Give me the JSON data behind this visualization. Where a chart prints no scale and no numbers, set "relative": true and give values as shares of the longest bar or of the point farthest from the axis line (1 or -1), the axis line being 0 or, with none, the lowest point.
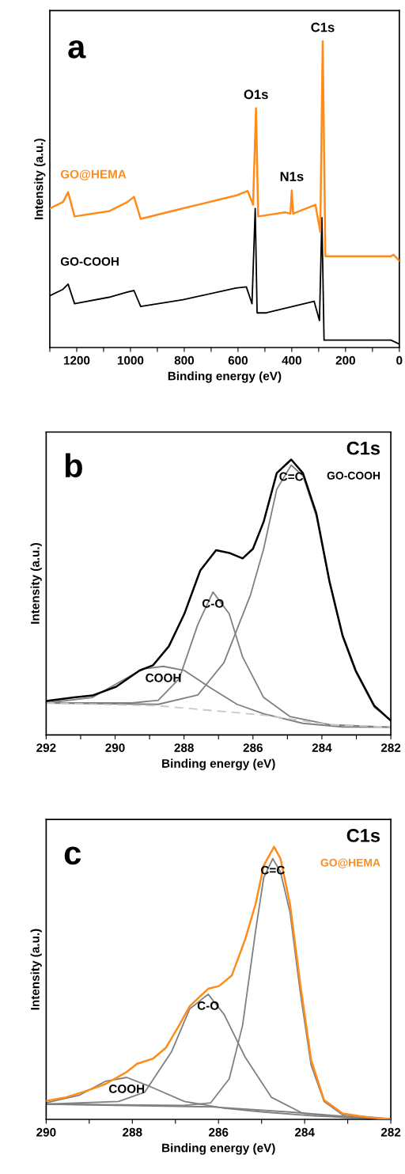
{
  "chart_data": [
    {
      "type": "line",
      "relative": true,
      "xlabel": "Binding energy (eV)",
      "ylabel": "Intensity (a.u.)",
      "xlim": [
        1300,
        0
      ],
      "xticks": [
        {
          "value": 1300,
          "label": null
        },
        1200,
        {
          "value": 1100,
          "label": null
        },
        1000,
        {
          "value": 900,
          "label": null
        },
        800,
        {
          "value": 700,
          "label": null
        },
        600,
        {
          "value": 500,
          "label": null
        },
        400,
        {
          "value": 300,
          "label": null
        },
        200,
        {
          "value": 100,
          "label": null
        },
        0
      ],
      "annotations": [
        "a",
        {
          "text": "O1s",
          "x": 533,
          "y": 0.781
        },
        {
          "text": "N1s",
          "x": 400,
          "y": 0.513
        },
        {
          "text": "C1s",
          "x": 285,
          "y": 1.0
        }
      ],
      "series": [
        {
          "name": "GO@HEMA",
          "color": "#ff8c1a",
          "x": [
            1300,
            1251,
            1232,
            1208,
            1080,
            1011,
            987,
            962,
            805,
            608,
            564,
            544,
            533,
            525,
            425,
            405,
            400,
            395,
            312,
            294,
            285,
            275,
            31,
            22,
            0
          ],
          "values": [
            0.454,
            0.475,
            0.507,
            0.428,
            0.445,
            0.475,
            0.492,
            0.42,
            0.454,
            0.496,
            0.511,
            0.466,
            0.781,
            0.428,
            0.441,
            0.437,
            0.513,
            0.437,
            0.466,
            0.377,
            1.0,
            0.298,
            0.298,
            0.303,
            0.283
          ]
        },
        {
          "name": "GO-COOH",
          "color": "#000000",
          "x": [
            1300,
            1251,
            1232,
            1208,
            1080,
            1011,
            987,
            962,
            805,
            608,
            569,
            548,
            536,
            529,
            495,
            317,
            297,
            288,
            280,
            31,
            0
          ],
          "values": [
            0.169,
            0.19,
            0.207,
            0.143,
            0.164,
            0.181,
            0.186,
            0.134,
            0.156,
            0.194,
            0.198,
            0.143,
            0.454,
            0.113,
            0.113,
            0.151,
            0.088,
            0.424,
            0.024,
            0.024,
            0.011
          ]
        }
      ]
    },
    {
      "type": "line",
      "relative": true,
      "title": "C1s",
      "xlabel": "Binding energy (eV)",
      "ylabel": "Intensity (a.u.)",
      "xlim": [
        292,
        282
      ],
      "xticks": [
        292,
        {
          "value": 291,
          "label": null
        },
        290,
        {
          "value": 289,
          "label": null
        },
        288,
        {
          "value": 287,
          "label": null
        },
        286,
        {
          "value": 285,
          "label": null
        },
        284,
        {
          "value": 283,
          "label": null
        },
        282
      ],
      "annotations": [
        "b"
      ],
      "series": [
        {
          "name": "GO-COOH",
          "color": "#000000",
          "x": [
            292,
            291.2,
            290.66,
            289.97,
            289.29,
            288.9,
            288.44,
            287.99,
            287.53,
            287.07,
            286.69,
            286.3,
            286.0,
            285.69,
            285.31,
            284.89,
            284.55,
            284.16,
            283.78,
            283.4,
            283.02,
            282.48,
            282
          ],
          "values": [
            0.123,
            0.136,
            0.143,
            0.175,
            0.234,
            0.253,
            0.322,
            0.44,
            0.597,
            0.671,
            0.661,
            0.641,
            0.676,
            0.774,
            0.951,
            1.0,
            0.951,
            0.804,
            0.558,
            0.361,
            0.234,
            0.106,
            0.052
          ]
        },
        {
          "name": "C=C",
          "color": "#808080",
          "x": [
            292,
            288.75,
            287.6,
            286.84,
            286.07,
            285.69,
            285.31,
            284.89,
            284.55,
            284.16,
            283.78,
            283.4,
            283.02,
            282.48,
            282
          ],
          "values": [
            0.116,
            0.111,
            0.145,
            0.263,
            0.509,
            0.676,
            0.892,
            0.98,
            0.941,
            0.794,
            0.553,
            0.357,
            0.229,
            0.101,
            0.052
          ]
        },
        {
          "name": "C-O",
          "color": "#808080",
          "x": [
            292,
            289.52,
            288.75,
            288.14,
            287.6,
            287.16,
            286.69,
            286.3,
            285.69,
            284.93,
            283.78,
            282
          ],
          "values": [
            0.116,
            0.116,
            0.126,
            0.204,
            0.401,
            0.519,
            0.44,
            0.283,
            0.136,
            0.067,
            0.037,
            0.028
          ]
        },
        {
          "name": "COOH",
          "color": "#808080",
          "x": [
            292,
            290.66,
            289.9,
            289.21,
            288.6,
            287.99,
            287.22,
            286.46,
            285.69,
            284.55,
            283.4,
            282
          ],
          "values": [
            0.116,
            0.136,
            0.19,
            0.239,
            0.249,
            0.234,
            0.17,
            0.111,
            0.077,
            0.042,
            0.029,
            0.028
          ]
        },
        {
          "color": "#c8c8c8",
          "line_style": "dashed",
          "x": [
            292,
            288.75,
            285.69,
            283.78,
            282
          ],
          "values": [
            0.116,
            0.106,
            0.072,
            0.037,
            0.028
          ]
        }
      ]
    },
    {
      "type": "line",
      "relative": true,
      "title": "C1s",
      "xlabel": "Binding energy (eV)",
      "ylabel": "Intensity (a.u.)",
      "xlim": [
        290,
        282
      ],
      "xticks": [
        290,
        {
          "value": 289,
          "label": null
        },
        288,
        {
          "value": 287,
          "label": null
        },
        286,
        {
          "value": 285,
          "label": null
        },
        284,
        {
          "value": 283,
          "label": null
        },
        282
      ],
      "annotations": [
        "c"
      ],
      "series": [
        {
          "name": "GO@HEMA",
          "color": "#ff8c1a",
          "x": [
            290,
            289.54,
            289.11,
            288.62,
            288.13,
            287.89,
            287.52,
            287.22,
            286.91,
            286.67,
            286.24,
            285.99,
            285.69,
            285.38,
            285.14,
            284.95,
            284.71,
            284.56,
            284.34,
            284.1,
            283.85,
            283.55,
            283.12,
            282.51,
            282
          ],
          "values": [
            0.068,
            0.081,
            0.102,
            0.13,
            0.174,
            0.204,
            0.223,
            0.263,
            0.346,
            0.415,
            0.479,
            0.489,
            0.528,
            0.661,
            0.789,
            0.931,
            1.0,
            0.956,
            0.789,
            0.494,
            0.218,
            0.071,
            0.022,
            0.007,
            0.0
          ]
        },
        {
          "name": "C=C",
          "color": "#808080",
          "x": [
            290,
            286.79,
            286.18,
            285.75,
            285.44,
            285.14,
            284.95,
            284.74,
            284.56,
            284.34,
            284.1,
            283.85,
            283.55,
            283.12,
            282
          ],
          "values": [
            0.056,
            0.051,
            0.061,
            0.149,
            0.346,
            0.69,
            0.887,
            0.956,
            0.907,
            0.759,
            0.464,
            0.199,
            0.066,
            0.017,
            0.002
          ]
        },
        {
          "name": "C-O",
          "color": "#808080",
          "x": [
            290,
            288.32,
            287.71,
            287.09,
            286.67,
            286.24,
            285.87,
            285.38,
            284.77,
            284.04,
            283.12,
            282
          ],
          "values": [
            0.056,
            0.066,
            0.1,
            0.248,
            0.405,
            0.459,
            0.385,
            0.228,
            0.081,
            0.022,
            0.007,
            0.002
          ]
        },
        {
          "name": "COOH",
          "color": "#808080",
          "x": [
            290,
            289.24,
            288.62,
            288.13,
            287.58,
            286.79,
            285.87,
            284.95,
            283.73,
            282
          ],
          "values": [
            0.061,
            0.088,
            0.14,
            0.154,
            0.12,
            0.066,
            0.041,
            0.027,
            0.012,
            0.002
          ]
        },
        {
          "color": "#808080",
          "x": [
            290,
            286.18,
            284.34,
            282.51,
            282
          ],
          "values": [
            0.056,
            0.046,
            0.027,
            0.004,
            0.002
          ]
        }
      ]
    }
  ]
}
